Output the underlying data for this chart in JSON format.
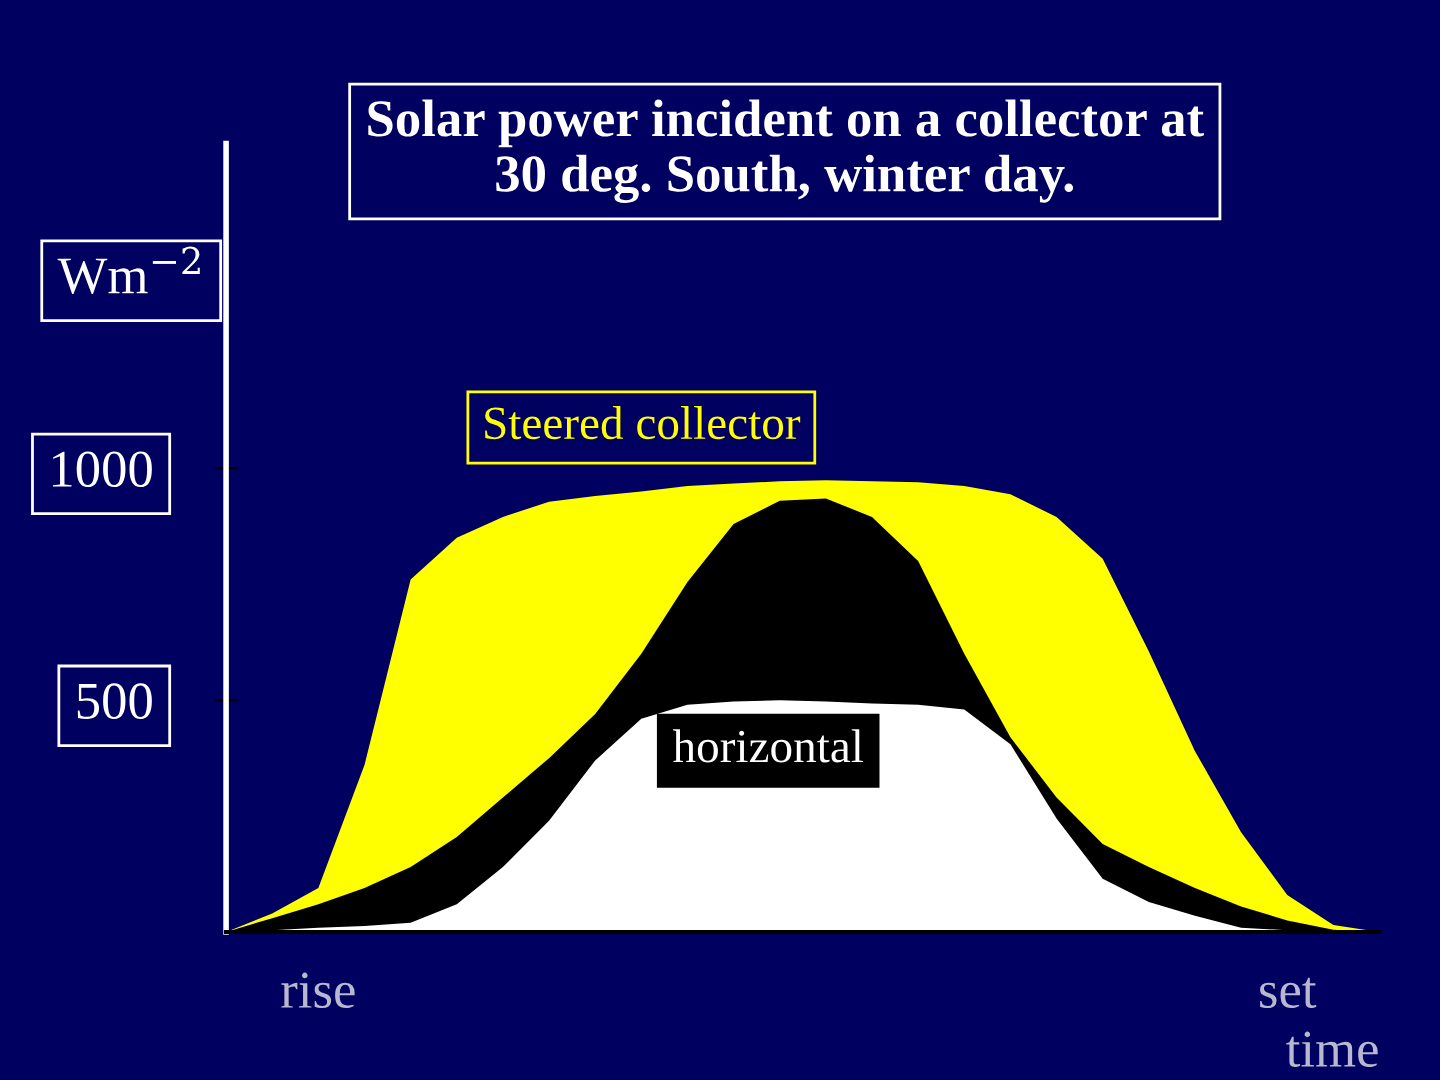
{
  "chart_data": {
    "type": "area",
    "title": "Solar power incident on a collector at\n30 deg. South, winter day.",
    "ylabel": "Wm$^{−2}$",
    "xlabel": "time",
    "categories": [
      null,
      null,
      "rise",
      null,
      null,
      null,
      null,
      null,
      null,
      null,
      null,
      null,
      null,
      null,
      null,
      null,
      null,
      null,
      null,
      null,
      null,
      null,
      null,
      "set",
      null,
      null
    ],
    "ylim": [
      0,
      1700
    ],
    "yticks": [
      500,
      1000
    ],
    "grid": false,
    "legend": false,
    "series": [
      {
        "name": "Steered collector",
        "color": "#ffff00",
        "values": [
          0,
          40,
          95,
          360,
          760,
          850,
          895,
          928,
          940,
          950,
          962,
          967,
          972,
          974,
          972,
          970,
          962,
          944,
          895,
          805,
          605,
          390,
          215,
          80,
          15,
          0
        ]
      },
      {
        "color": "#000000",
        "values": [
          0,
          30,
          60,
          95,
          140,
          205,
          290,
          375,
          470,
          600,
          755,
          880,
          930,
          935,
          895,
          800,
          600,
          420,
          290,
          190,
          140,
          95,
          55,
          25,
          5,
          0
        ]
      },
      {
        "name": "horizontal",
        "color": "#ffffff",
        "values": [
          0,
          4,
          9,
          13,
          20,
          60,
          140,
          240,
          370,
          460,
          490,
          497,
          500,
          497,
          493,
          490,
          480,
          405,
          245,
          115,
          65,
          35,
          9,
          4,
          2,
          0
        ]
      }
    ]
  }
}
